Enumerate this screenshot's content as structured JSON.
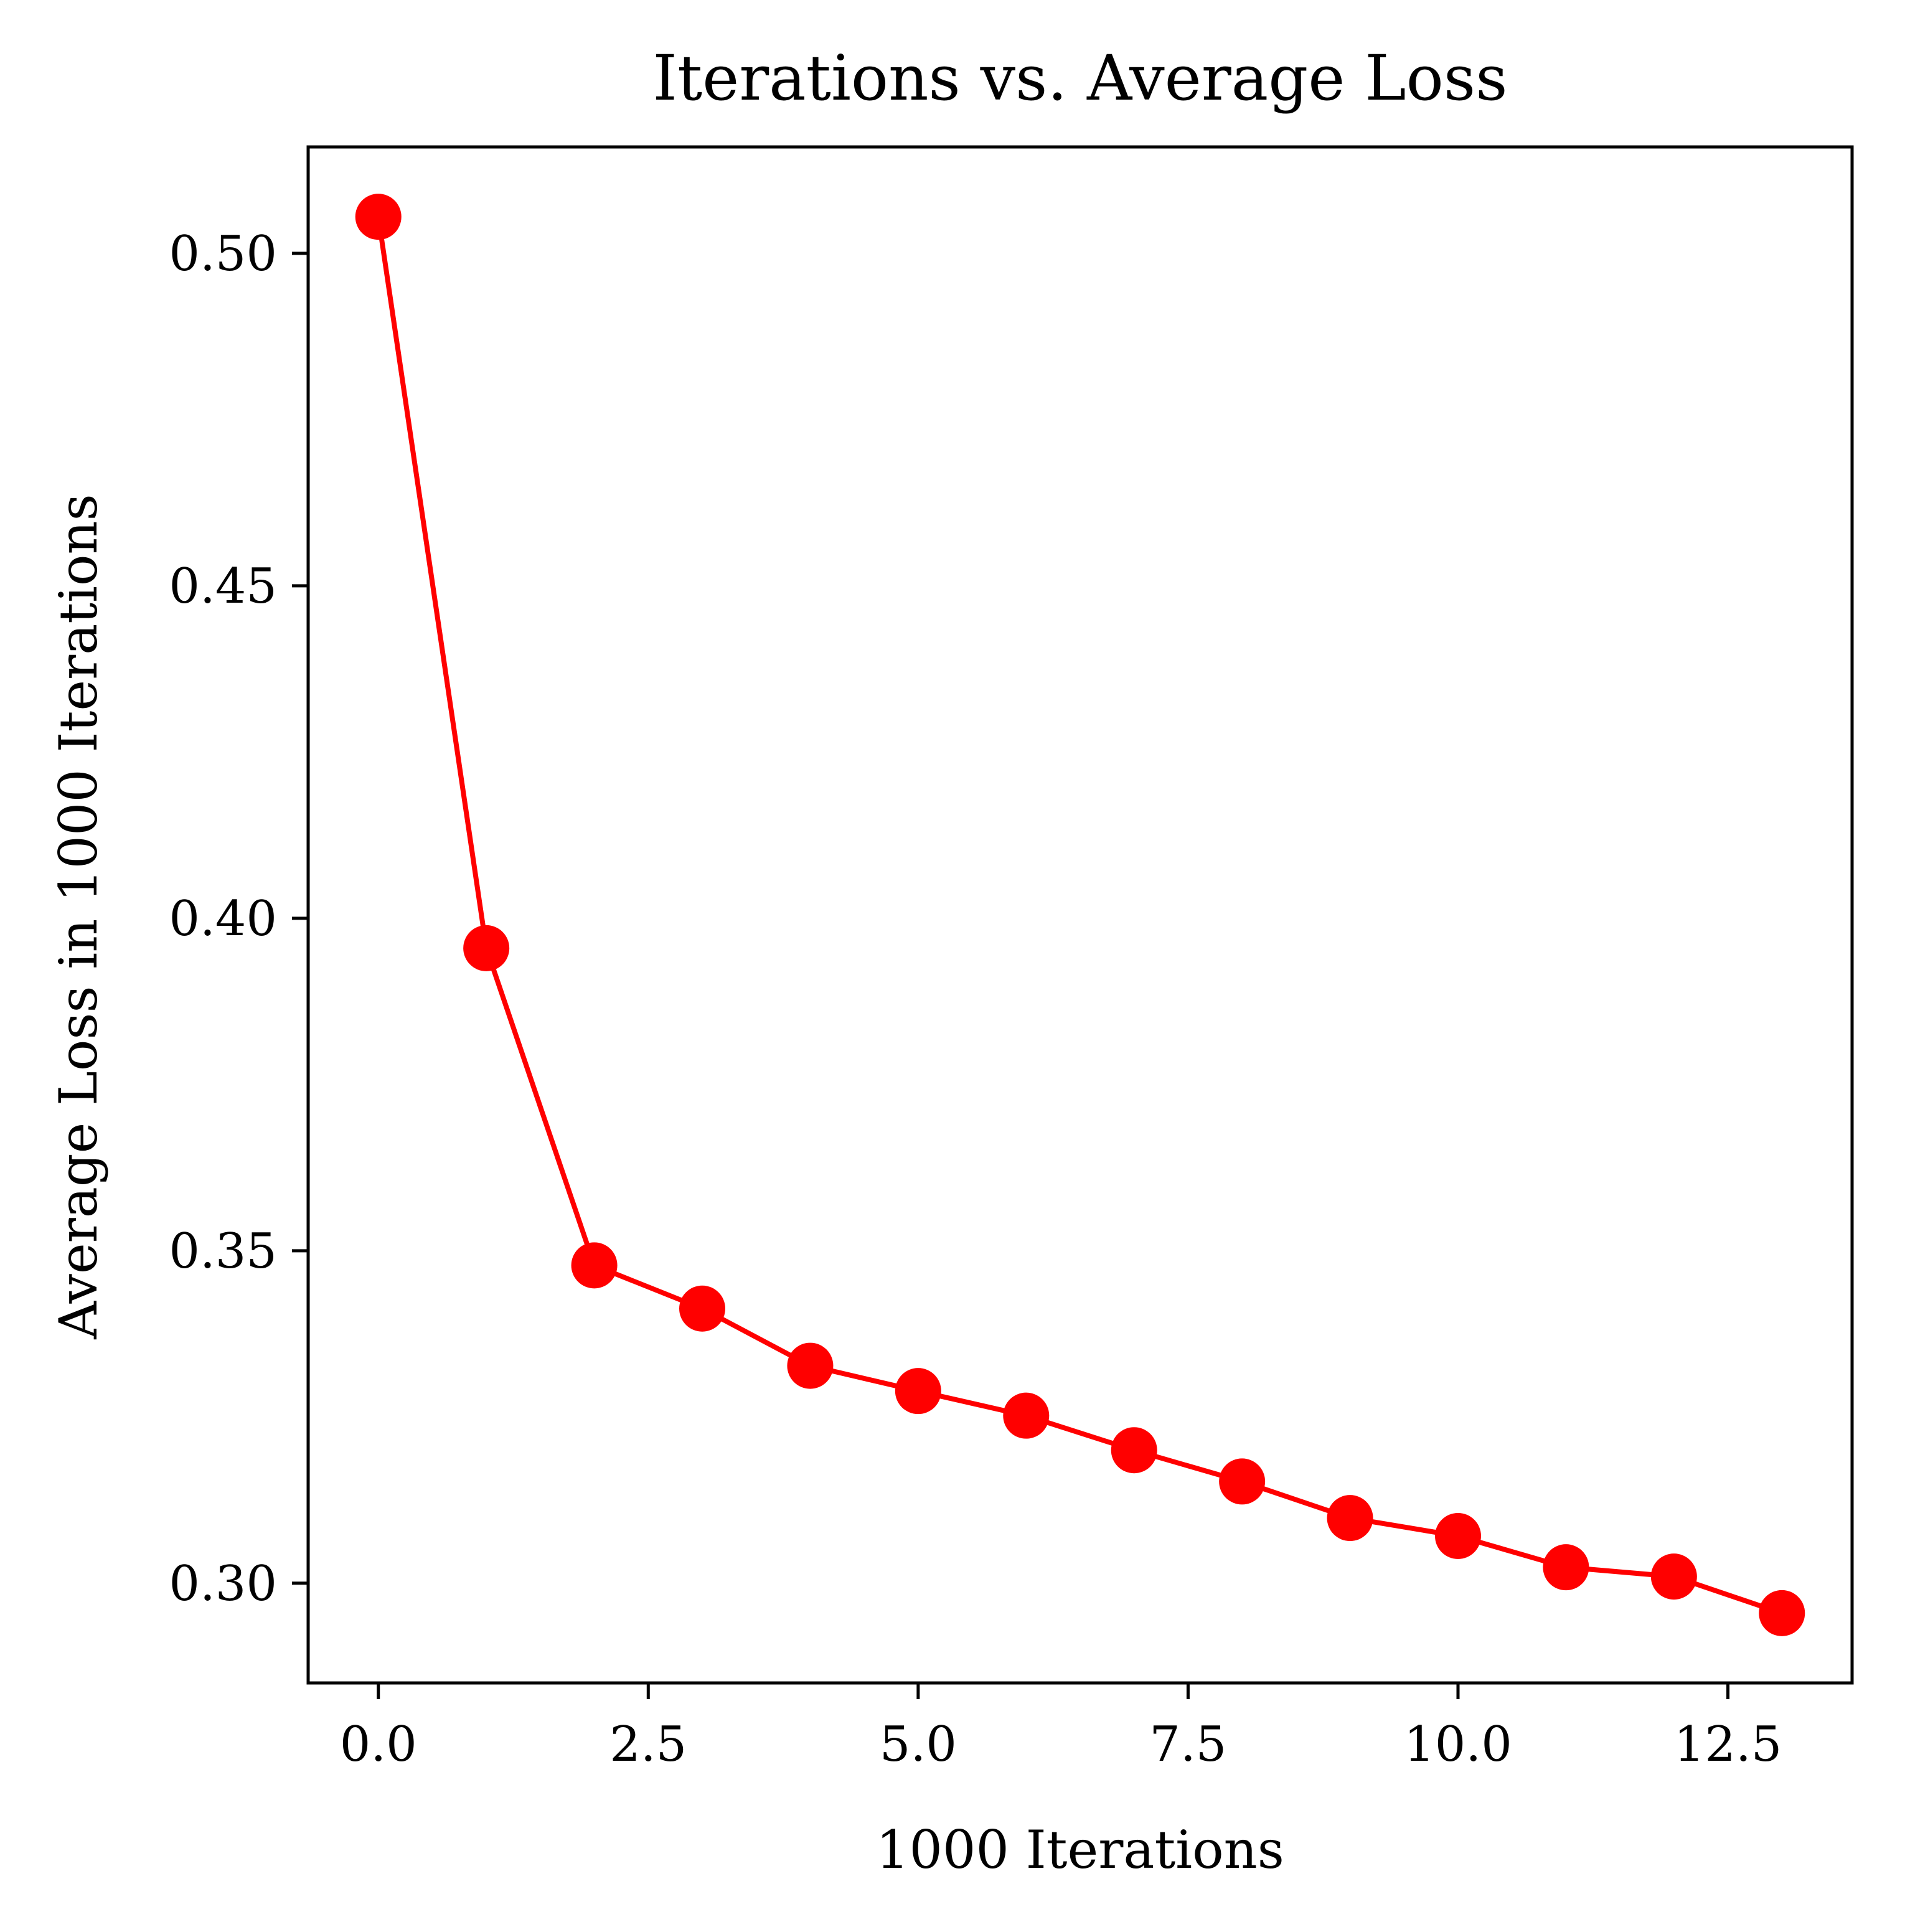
{
  "chart_data": {
    "type": "line",
    "title": "Iterations vs. Average Loss",
    "xlabel": "1000 Iterations",
    "ylabel": "Average Loss in 1000 Iterations",
    "xlim": [
      -0.65,
      13.65
    ],
    "ylim": [
      0.285,
      0.516
    ],
    "xticks": [
      0.0,
      2.5,
      5.0,
      7.5,
      10.0,
      12.5
    ],
    "xtick_labels": [
      "0.0",
      "2.5",
      "5.0",
      "7.5",
      "10.0",
      "12.5"
    ],
    "yticks": [
      0.3,
      0.35,
      0.4,
      0.45,
      0.5
    ],
    "ytick_labels": [
      "0.30",
      "0.35",
      "0.40",
      "0.45",
      "0.50"
    ],
    "grid": false,
    "series": [
      {
        "name": "Average Loss",
        "color": "#ff0000",
        "marker": "circle",
        "x": [
          0,
          1,
          2,
          3,
          4,
          5,
          6,
          7,
          8,
          9,
          10,
          11,
          12,
          13
        ],
        "values": [
          0.5055,
          0.3955,
          0.3478,
          0.3413,
          0.3327,
          0.3289,
          0.3252,
          0.32,
          0.3153,
          0.3098,
          0.3071,
          0.3024,
          0.301,
          0.2955
        ]
      }
    ]
  }
}
